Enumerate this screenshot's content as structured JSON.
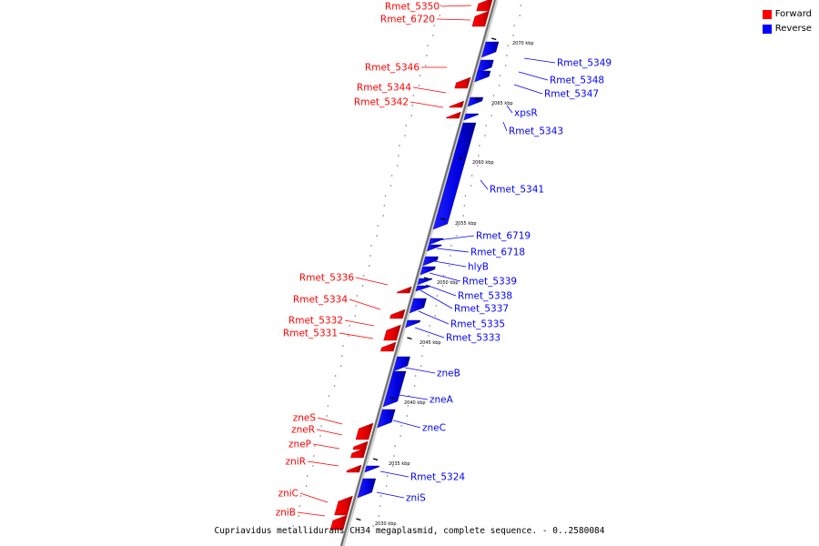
{
  "legend": {
    "forward_label": "Forward",
    "reverse_label": "Reverse",
    "forward_color": "#ff0000",
    "reverse_color": "#0000ff"
  },
  "caption": "Cupriavidus metallidurans CH34 megaplasmid, complete sequence. - 0..2580084",
  "ticks": [
    "2070 kbp",
    "2065 kbp",
    "2060 kbp",
    "2055 kbp",
    "2050 kbp",
    "2045 kbp",
    "2040 kbp",
    "2035 kbp",
    "2030 kbp"
  ],
  "genes_forward": [
    "Rmet_5350",
    "Rmet_6720",
    "Rmet_5346",
    "Rmet_5344",
    "Rmet_5342",
    "Rmet_5336",
    "Rmet_5334",
    "Rmet_5332",
    "Rmet_5331",
    "zneS",
    "zneR",
    "zneP",
    "zniR",
    "zniC",
    "zniB"
  ],
  "genes_reverse": [
    "Rmet_5349",
    "Rmet_5348",
    "Rmet_5347",
    "xpsR",
    "Rmet_5343",
    "Rmet_5341",
    "Rmet_6719",
    "Rmet_6718",
    "hlyB",
    "Rmet_5339",
    "Rmet_5338",
    "Rmet_5337",
    "Rmet_5335",
    "Rmet_5333",
    "zneB",
    "zneA",
    "zneC",
    "Rmet_5324",
    "zniS"
  ]
}
